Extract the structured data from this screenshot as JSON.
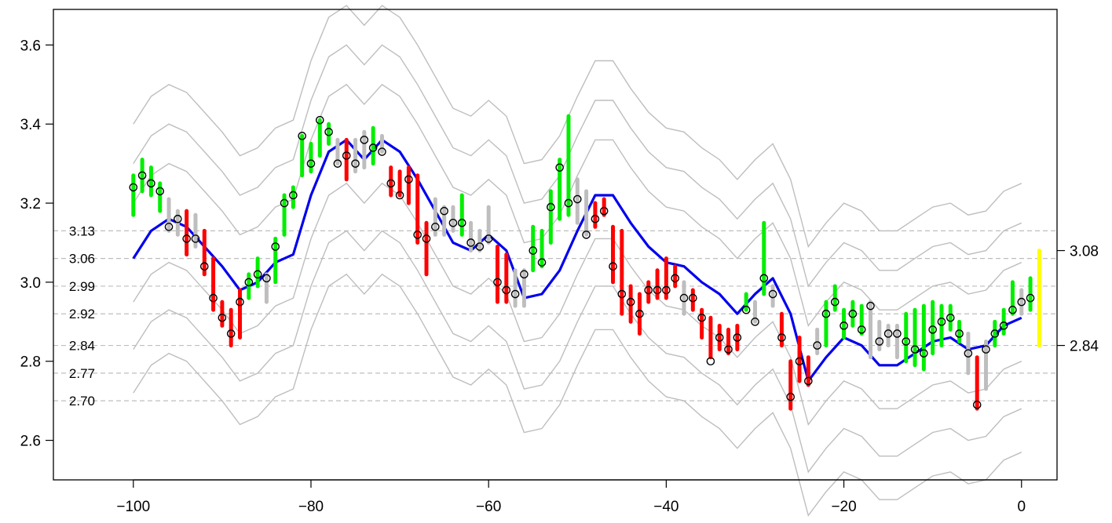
{
  "chart_data": {
    "type": "line",
    "title": "",
    "xlabel": "",
    "ylabel": "",
    "xlim": [
      -109,
      4
    ],
    "ylim": [
      2.5,
      3.69
    ],
    "x_ticks": [
      "-100",
      "-80",
      "-60",
      "-40",
      "-20",
      "0"
    ],
    "x_tick_values": [
      -100,
      -80,
      -60,
      -40,
      -20,
      0
    ],
    "y_ticks": [
      "2.6",
      "2.8",
      "3.0",
      "3.2",
      "3.4",
      "3.6"
    ],
    "y_tick_values": [
      2.6,
      2.8,
      3.0,
      3.2,
      3.4,
      3.6
    ],
    "grid": false,
    "reference_lines": {
      "values": [
        3.13,
        3.06,
        2.99,
        2.92,
        2.84,
        2.77,
        2.7
      ],
      "labels": [
        "3.13",
        "3.06",
        "2.99",
        "2.92",
        "2.84",
        "2.77",
        "2.70"
      ],
      "color": "#bebebe",
      "style": "dashed"
    },
    "right_axis": {
      "ticks": [
        "3.08",
        "2.84"
      ],
      "tick_values": [
        3.08,
        2.84
      ]
    },
    "colors": {
      "up": "#00ee00",
      "down": "#ff0000",
      "neutral": "#bebebe",
      "last": "#ffff00",
      "moving_average": "#0000ee",
      "bands": "#bebebe"
    },
    "series": [
      {
        "role": "moving-average",
        "color": "#0000ee",
        "x": [
          -100,
          -98,
          -96,
          -94,
          -92,
          -90,
          -88,
          -86,
          -84,
          -82,
          -80,
          -78,
          -76,
          -74,
          -72,
          -70,
          -68,
          -66,
          -64,
          -62,
          -60,
          -58,
          -56,
          -54,
          -52,
          -50,
          -48,
          -46,
          -44,
          -42,
          -40,
          -38,
          -36,
          -34,
          -32,
          -30,
          -28,
          -26,
          -24,
          -22,
          -20,
          -18,
          -16,
          -14,
          -12,
          -10,
          -8,
          -6,
          -4,
          -2,
          0
        ],
        "values": [
          3.06,
          3.13,
          3.16,
          3.14,
          3.09,
          3.04,
          2.98,
          3.0,
          3.05,
          3.07,
          3.22,
          3.33,
          3.36,
          3.31,
          3.36,
          3.33,
          3.26,
          3.18,
          3.1,
          3.08,
          3.12,
          3.08,
          2.96,
          2.97,
          3.03,
          3.13,
          3.22,
          3.22,
          3.15,
          3.09,
          3.05,
          3.04,
          3.0,
          2.97,
          2.92,
          2.97,
          3.01,
          2.92,
          2.75,
          2.81,
          2.86,
          2.84,
          2.79,
          2.79,
          2.82,
          2.85,
          2.86,
          2.83,
          2.84,
          2.89,
          2.91
        ]
      }
    ],
    "bands": {
      "color": "#bebebe",
      "offsets": [
        0.34,
        0.24,
        0.14,
        -0.11,
        -0.23,
        -0.34
      ]
    },
    "ranges": [
      {
        "x": -100,
        "low": 3.17,
        "high": 3.27,
        "color": "up",
        "close": 3.24
      },
      {
        "x": -99,
        "low": 3.23,
        "high": 3.31,
        "color": "up",
        "close": 3.27
      },
      {
        "x": -98,
        "low": 3.22,
        "high": 3.29,
        "color": "up",
        "close": 3.25
      },
      {
        "x": -97,
        "low": 3.18,
        "high": 3.25,
        "color": "up",
        "close": 3.23
      },
      {
        "x": -96,
        "low": 3.13,
        "high": 3.21,
        "color": "neutral",
        "close": 3.14
      },
      {
        "x": -95,
        "low": 3.12,
        "high": 3.18,
        "color": "neutral",
        "close": 3.16
      },
      {
        "x": -94,
        "low": 3.07,
        "high": 3.18,
        "color": "down",
        "close": 3.11
      },
      {
        "x": -93,
        "low": 3.09,
        "high": 3.17,
        "color": "neutral",
        "close": 3.11
      },
      {
        "x": -92,
        "low": 3.02,
        "high": 3.13,
        "color": "down",
        "close": 3.04
      },
      {
        "x": -91,
        "low": 2.93,
        "high": 3.06,
        "color": "down",
        "close": 2.96
      },
      {
        "x": -90,
        "low": 2.89,
        "high": 2.95,
        "color": "down",
        "close": 2.91
      },
      {
        "x": -89,
        "low": 2.84,
        "high": 2.93,
        "color": "down",
        "close": 2.87
      },
      {
        "x": -88,
        "low": 2.86,
        "high": 2.98,
        "color": "down",
        "close": 2.95
      },
      {
        "x": -87,
        "low": 2.96,
        "high": 3.02,
        "color": "up",
        "close": 3.0
      },
      {
        "x": -86,
        "low": 2.99,
        "high": 3.06,
        "color": "up",
        "close": 3.02
      },
      {
        "x": -85,
        "low": 2.95,
        "high": 3.02,
        "color": "neutral",
        "close": 3.01
      },
      {
        "x": -84,
        "low": 3.0,
        "high": 3.11,
        "color": "up",
        "close": 3.09
      },
      {
        "x": -83,
        "low": 3.12,
        "high": 3.22,
        "color": "up",
        "close": 3.2
      },
      {
        "x": -82,
        "low": 3.19,
        "high": 3.24,
        "color": "up",
        "close": 3.22
      },
      {
        "x": -81,
        "low": 3.27,
        "high": 3.37,
        "color": "up",
        "close": 3.37
      },
      {
        "x": -80,
        "low": 3.28,
        "high": 3.35,
        "color": "up",
        "close": 3.3
      },
      {
        "x": -79,
        "low": 3.32,
        "high": 3.41,
        "color": "up",
        "close": 3.41
      },
      {
        "x": -78,
        "low": 3.35,
        "high": 3.4,
        "color": "up",
        "close": 3.38
      },
      {
        "x": -77,
        "low": 3.3,
        "high": 3.36,
        "color": "neutral",
        "close": 3.3
      },
      {
        "x": -76,
        "low": 3.26,
        "high": 3.36,
        "color": "down",
        "close": 3.32
      },
      {
        "x": -75,
        "low": 3.28,
        "high": 3.36,
        "color": "neutral",
        "close": 3.3
      },
      {
        "x": -74,
        "low": 3.29,
        "high": 3.38,
        "color": "neutral",
        "close": 3.36
      },
      {
        "x": -73,
        "low": 3.3,
        "high": 3.39,
        "color": "up",
        "close": 3.34
      },
      {
        "x": -72,
        "low": 3.33,
        "high": 3.37,
        "color": "neutral",
        "close": 3.33
      },
      {
        "x": -71,
        "low": 3.22,
        "high": 3.29,
        "color": "down",
        "close": 3.25
      },
      {
        "x": -70,
        "low": 3.22,
        "high": 3.28,
        "color": "down",
        "close": 3.22
      },
      {
        "x": -69,
        "low": 3.2,
        "high": 3.29,
        "color": "down",
        "close": 3.26
      },
      {
        "x": -68,
        "low": 3.1,
        "high": 3.27,
        "color": "down",
        "close": 3.12
      },
      {
        "x": -67,
        "low": 3.02,
        "high": 3.15,
        "color": "down",
        "close": 3.11
      },
      {
        "x": -66,
        "low": 3.12,
        "high": 3.21,
        "color": "neutral",
        "close": 3.14
      },
      {
        "x": -65,
        "low": 3.12,
        "high": 3.19,
        "color": "neutral",
        "close": 3.18
      },
      {
        "x": -64,
        "low": 3.13,
        "high": 3.19,
        "color": "neutral",
        "close": 3.15
      },
      {
        "x": -63,
        "low": 3.12,
        "high": 3.22,
        "color": "up",
        "close": 3.15
      },
      {
        "x": -62,
        "low": 3.08,
        "high": 3.15,
        "color": "neutral",
        "close": 3.1
      },
      {
        "x": -61,
        "low": 3.08,
        "high": 3.13,
        "color": "neutral",
        "close": 3.09
      },
      {
        "x": -60,
        "low": 3.1,
        "high": 3.19,
        "color": "neutral",
        "close": 3.11
      },
      {
        "x": -59,
        "low": 2.95,
        "high": 3.09,
        "color": "down",
        "close": 3.0
      },
      {
        "x": -58,
        "low": 2.95,
        "high": 3.07,
        "color": "down",
        "close": 2.98
      },
      {
        "x": -57,
        "low": 2.94,
        "high": 3.03,
        "color": "neutral",
        "close": 2.97
      },
      {
        "x": -56,
        "low": 2.94,
        "high": 3.03,
        "color": "neutral",
        "close": 3.02
      },
      {
        "x": -55,
        "low": 3.03,
        "high": 3.14,
        "color": "up",
        "close": 3.08
      },
      {
        "x": -54,
        "low": 3.04,
        "high": 3.13,
        "color": "up",
        "close": 3.05
      },
      {
        "x": -53,
        "low": 3.1,
        "high": 3.23,
        "color": "up",
        "close": 3.19
      },
      {
        "x": -52,
        "low": 3.16,
        "high": 3.31,
        "color": "up",
        "close": 3.29
      },
      {
        "x": -51,
        "low": 3.17,
        "high": 3.42,
        "color": "up",
        "close": 3.2
      },
      {
        "x": -50,
        "low": 3.15,
        "high": 3.26,
        "color": "neutral",
        "close": 3.21
      },
      {
        "x": -49,
        "low": 3.12,
        "high": 3.23,
        "color": "neutral",
        "close": 3.12
      },
      {
        "x": -48,
        "low": 3.14,
        "high": 3.2,
        "color": "down",
        "close": 3.16
      },
      {
        "x": -47,
        "low": 3.17,
        "high": 3.21,
        "color": "down",
        "close": 3.18
      },
      {
        "x": -46,
        "low": 3.0,
        "high": 3.14,
        "color": "down",
        "close": 3.04
      },
      {
        "x": -45,
        "low": 2.92,
        "high": 3.13,
        "color": "down",
        "close": 2.97
      },
      {
        "x": -44,
        "low": 2.9,
        "high": 2.99,
        "color": "down",
        "close": 2.95
      },
      {
        "x": -43,
        "low": 2.87,
        "high": 2.97,
        "color": "down",
        "close": 2.92
      },
      {
        "x": -42,
        "low": 2.95,
        "high": 3.0,
        "color": "down",
        "close": 2.98
      },
      {
        "x": -41,
        "low": 2.96,
        "high": 3.03,
        "color": "down",
        "close": 2.98
      },
      {
        "x": -40,
        "low": 2.96,
        "high": 3.06,
        "color": "down",
        "close": 2.98
      },
      {
        "x": -39,
        "low": 2.99,
        "high": 3.04,
        "color": "down",
        "close": 3.01
      },
      {
        "x": -38,
        "low": 2.92,
        "high": 3.0,
        "color": "neutral",
        "close": 2.96
      },
      {
        "x": -37,
        "low": 2.93,
        "high": 2.98,
        "color": "down",
        "close": 2.96
      },
      {
        "x": -36,
        "low": 2.86,
        "high": 2.93,
        "color": "down",
        "close": 2.91
      },
      {
        "x": -35,
        "low": 2.81,
        "high": 2.91,
        "color": "down",
        "close": 2.8
      },
      {
        "x": -34,
        "low": 2.83,
        "high": 2.89,
        "color": "down",
        "close": 2.86
      },
      {
        "x": -33,
        "low": 2.82,
        "high": 2.88,
        "color": "down",
        "close": 2.83
      },
      {
        "x": -32,
        "low": 2.83,
        "high": 2.89,
        "color": "down",
        "close": 2.86
      },
      {
        "x": -31,
        "low": 2.93,
        "high": 2.97,
        "color": "up",
        "close": 2.93
      },
      {
        "x": -30,
        "low": 2.9,
        "high": 2.95,
        "color": "neutral",
        "close": 2.9
      },
      {
        "x": -29,
        "low": 2.97,
        "high": 3.15,
        "color": "up",
        "close": 3.01
      },
      {
        "x": -28,
        "low": 2.94,
        "high": 2.99,
        "color": "neutral",
        "close": 2.97
      },
      {
        "x": -27,
        "low": 2.84,
        "high": 2.92,
        "color": "down",
        "close": 2.86
      },
      {
        "x": -26,
        "low": 2.68,
        "high": 2.8,
        "color": "down",
        "close": 2.71
      },
      {
        "x": -25,
        "low": 2.75,
        "high": 2.86,
        "color": "down",
        "close": 2.8
      },
      {
        "x": -24,
        "low": 2.74,
        "high": 2.81,
        "color": "down",
        "close": 2.75
      },
      {
        "x": -23,
        "low": 2.82,
        "high": 2.88,
        "color": "neutral",
        "close": 2.84
      },
      {
        "x": -22,
        "low": 2.84,
        "high": 2.95,
        "color": "up",
        "close": 2.92
      },
      {
        "x": -21,
        "low": 2.93,
        "high": 2.99,
        "color": "up",
        "close": 2.95
      },
      {
        "x": -20,
        "low": 2.86,
        "high": 2.93,
        "color": "up",
        "close": 2.89
      },
      {
        "x": -19,
        "low": 2.89,
        "high": 2.95,
        "color": "up",
        "close": 2.92
      },
      {
        "x": -18,
        "low": 2.87,
        "high": 2.94,
        "color": "up",
        "close": 2.88
      },
      {
        "x": -17,
        "low": 2.81,
        "high": 2.95,
        "color": "neutral",
        "close": 2.94
      },
      {
        "x": -16,
        "low": 2.83,
        "high": 2.9,
        "color": "neutral",
        "close": 2.85
      },
      {
        "x": -15,
        "low": 2.84,
        "high": 2.89,
        "color": "neutral",
        "close": 2.87
      },
      {
        "x": -14,
        "low": 2.81,
        "high": 2.89,
        "color": "neutral",
        "close": 2.87
      },
      {
        "x": -13,
        "low": 2.8,
        "high": 2.92,
        "color": "up",
        "close": 2.85
      },
      {
        "x": -12,
        "low": 2.79,
        "high": 2.93,
        "color": "up",
        "close": 2.83
      },
      {
        "x": -11,
        "low": 2.78,
        "high": 2.94,
        "color": "up",
        "close": 2.82
      },
      {
        "x": -10,
        "low": 2.82,
        "high": 2.95,
        "color": "up",
        "close": 2.88
      },
      {
        "x": -9,
        "low": 2.84,
        "high": 2.94,
        "color": "up",
        "close": 2.9
      },
      {
        "x": -8,
        "low": 2.88,
        "high": 2.94,
        "color": "up",
        "close": 2.91
      },
      {
        "x": -7,
        "low": 2.85,
        "high": 2.9,
        "color": "up",
        "close": 2.87
      },
      {
        "x": -6,
        "low": 2.77,
        "high": 2.87,
        "color": "neutral",
        "close": 2.82
      },
      {
        "x": -5,
        "low": 2.68,
        "high": 2.81,
        "color": "down",
        "close": 2.69
      },
      {
        "x": -4,
        "low": 2.73,
        "high": 2.85,
        "color": "neutral",
        "close": 2.83
      },
      {
        "x": -3,
        "low": 2.84,
        "high": 2.9,
        "color": "up",
        "close": 2.87
      },
      {
        "x": -2,
        "low": 2.87,
        "high": 2.93,
        "color": "up",
        "close": 2.89
      },
      {
        "x": -1,
        "low": 2.92,
        "high": 3.0,
        "color": "up",
        "close": 2.93
      },
      {
        "x": 0,
        "low": 2.92,
        "high": 2.98,
        "color": "neutral",
        "close": 2.95
      },
      {
        "x": 1,
        "low": 2.93,
        "high": 3.01,
        "color": "up",
        "close": 2.96
      },
      {
        "x": 2,
        "low": 2.84,
        "high": 3.08,
        "color": "last",
        "close": null
      }
    ]
  }
}
